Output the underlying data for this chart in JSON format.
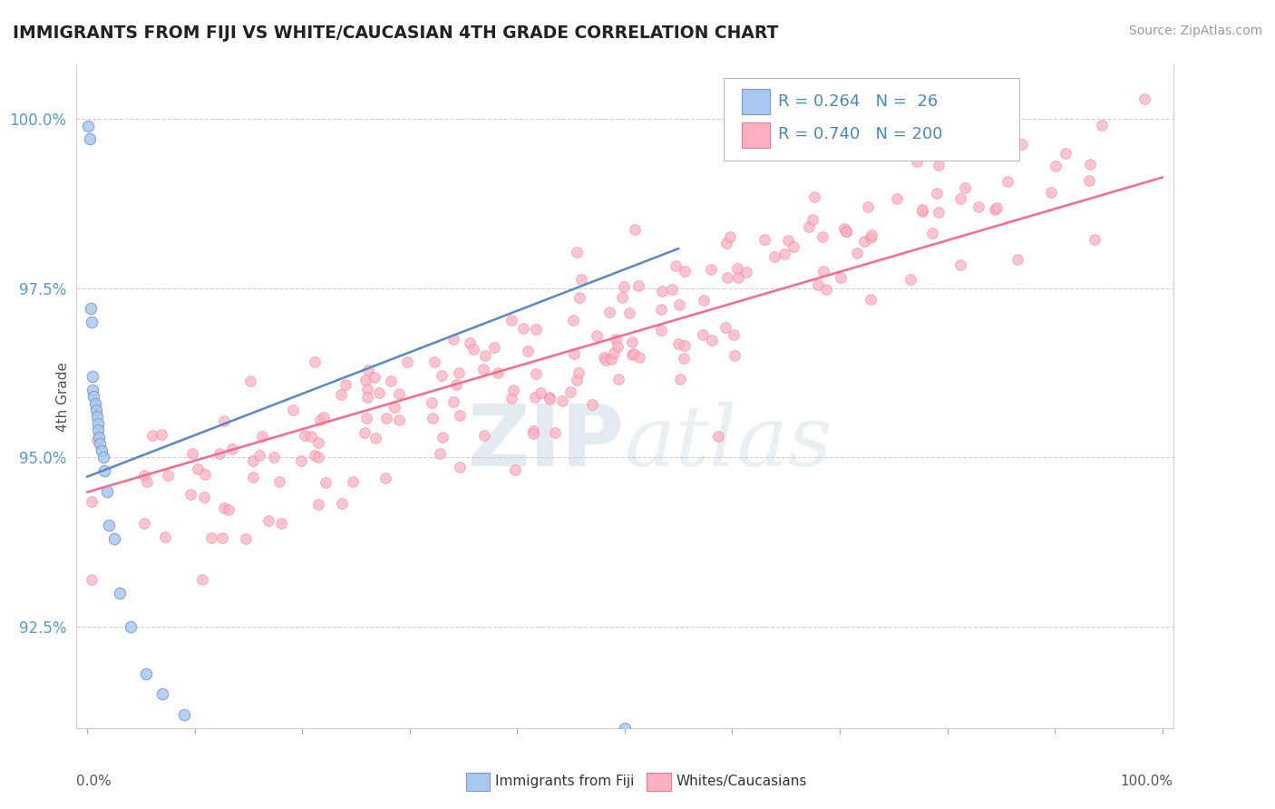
{
  "title": "IMMIGRANTS FROM FIJI VS WHITE/CAUCASIAN 4TH GRADE CORRELATION CHART",
  "source": "Source: ZipAtlas.com",
  "ylabel": "4th Grade",
  "legend_label1": "Immigrants from Fiji",
  "legend_label2": "Whites/Caucasians",
  "R1": 0.264,
  "N1": 26,
  "R2": 0.74,
  "N2": 200,
  "color1": "#A8C8F0",
  "color2": "#FFB0C0",
  "line_color1": "#5588CC",
  "line_color2": "#FF6688",
  "watermark_zip": "ZIP",
  "watermark_atlas": "atlas",
  "watermark_color": "#C8D8E8",
  "background_color": "#FFFFFF",
  "xlim": [
    -1,
    101
  ],
  "ylim": [
    91.0,
    100.8
  ],
  "yticks": [
    92.5,
    95.0,
    97.5,
    100.0
  ],
  "ytick_labels": [
    "92.5%",
    "95.0%",
    "97.5%",
    "100.0%"
  ]
}
